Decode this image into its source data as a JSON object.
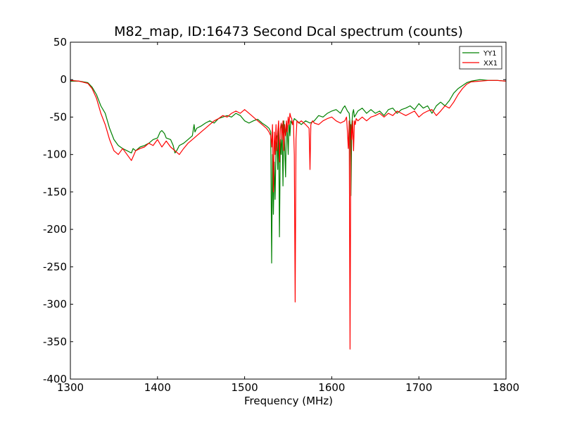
{
  "chart_data": {
    "type": "line",
    "title": "M82_map, ID:16473 Second Dcal spectrum (counts)",
    "xlabel": "Frequency (MHz)",
    "ylabel": "",
    "xlim": [
      1300,
      1800
    ],
    "ylim": [
      -400,
      50
    ],
    "xticks": [
      1300,
      1400,
      1500,
      1600,
      1700,
      1800
    ],
    "yticks": [
      50,
      0,
      -50,
      -100,
      -150,
      -200,
      -250,
      -300,
      -350,
      -400
    ],
    "grid": false,
    "legend": "top-right",
    "series": [
      {
        "name": "YY1",
        "color": "#008000",
        "x": [
          1300,
          1310,
          1320,
          1325,
          1330,
          1335,
          1340,
          1345,
          1350,
          1355,
          1360,
          1365,
          1370,
          1372,
          1375,
          1380,
          1385,
          1390,
          1395,
          1400,
          1403,
          1405,
          1408,
          1410,
          1415,
          1418,
          1420,
          1422,
          1425,
          1430,
          1435,
          1440,
          1442,
          1443,
          1445,
          1450,
          1455,
          1460,
          1465,
          1470,
          1475,
          1480,
          1485,
          1490,
          1495,
          1500,
          1505,
          1510,
          1515,
          1520,
          1525,
          1528,
          1530,
          1531,
          1532,
          1533,
          1534,
          1535,
          1536,
          1537,
          1538,
          1539,
          1540,
          1541,
          1542,
          1543,
          1544,
          1545,
          1546,
          1547,
          1548,
          1549,
          1550,
          1551,
          1552,
          1553,
          1555,
          1557,
          1560,
          1565,
          1570,
          1575,
          1580,
          1585,
          1590,
          1595,
          1600,
          1605,
          1610,
          1613,
          1615,
          1618,
          1620,
          1621,
          1622,
          1623,
          1624,
          1625,
          1626,
          1630,
          1635,
          1640,
          1645,
          1650,
          1655,
          1660,
          1665,
          1670,
          1675,
          1680,
          1685,
          1690,
          1695,
          1700,
          1705,
          1710,
          1715,
          1720,
          1725,
          1730,
          1735,
          1740,
          1745,
          1750,
          1755,
          1760,
          1770,
          1780,
          1790,
          1800
        ],
        "y": [
          -2,
          -2,
          -4,
          -10,
          -20,
          -35,
          -45,
          -65,
          -80,
          -88,
          -92,
          -95,
          -98,
          -92,
          -95,
          -90,
          -88,
          -85,
          -80,
          -78,
          -70,
          -68,
          -72,
          -78,
          -80,
          -88,
          -98,
          -95,
          -88,
          -85,
          -80,
          -75,
          -60,
          -70,
          -65,
          -62,
          -58,
          -55,
          -58,
          -52,
          -50,
          -48,
          -50,
          -45,
          -48,
          -55,
          -58,
          -55,
          -53,
          -58,
          -62,
          -65,
          -70,
          -245,
          -100,
          -180,
          -110,
          -160,
          -90,
          -75,
          -120,
          -60,
          -210,
          -80,
          -100,
          -60,
          -142,
          -55,
          -90,
          -130,
          -58,
          -70,
          -100,
          -55,
          -75,
          -55,
          -60,
          -52,
          -55,
          -60,
          -55,
          -58,
          -55,
          -48,
          -50,
          -45,
          -42,
          -40,
          -45,
          -38,
          -35,
          -42,
          -45,
          -60,
          -155,
          -60,
          -45,
          -40,
          -50,
          -42,
          -38,
          -45,
          -40,
          -45,
          -42,
          -48,
          -40,
          -38,
          -45,
          -40,
          -38,
          -35,
          -40,
          -32,
          -38,
          -35,
          -45,
          -35,
          -30,
          -35,
          -28,
          -18,
          -12,
          -8,
          -4,
          -2,
          0,
          -1,
          -1,
          -2
        ],
        "linewidth": 1.2
      },
      {
        "name": "XX1",
        "color": "#ff0000",
        "x": [
          1300,
          1310,
          1320,
          1325,
          1330,
          1335,
          1340,
          1345,
          1350,
          1355,
          1360,
          1365,
          1370,
          1372,
          1375,
          1380,
          1385,
          1390,
          1395,
          1400,
          1405,
          1410,
          1415,
          1420,
          1425,
          1430,
          1435,
          1440,
          1445,
          1450,
          1455,
          1460,
          1465,
          1470,
          1475,
          1480,
          1485,
          1490,
          1495,
          1500,
          1505,
          1510,
          1515,
          1520,
          1525,
          1528,
          1530,
          1531,
          1532,
          1533,
          1534,
          1535,
          1536,
          1537,
          1538,
          1539,
          1540,
          1541,
          1542,
          1543,
          1544,
          1545,
          1546,
          1547,
          1548,
          1549,
          1550,
          1551,
          1552,
          1553,
          1554,
          1555,
          1556,
          1557,
          1558,
          1559,
          1560,
          1562,
          1565,
          1570,
          1574,
          1575,
          1576,
          1578,
          1580,
          1585,
          1590,
          1595,
          1600,
          1605,
          1610,
          1615,
          1617,
          1618,
          1619,
          1620,
          1621,
          1622,
          1623,
          1624,
          1625,
          1626,
          1627,
          1628,
          1630,
          1635,
          1640,
          1645,
          1650,
          1655,
          1660,
          1665,
          1670,
          1675,
          1680,
          1685,
          1690,
          1695,
          1700,
          1705,
          1710,
          1715,
          1720,
          1725,
          1730,
          1735,
          1740,
          1745,
          1750,
          1755,
          1760,
          1770,
          1780,
          1790,
          1800
        ],
        "y": [
          -1,
          -2,
          -5,
          -12,
          -25,
          -45,
          -60,
          -80,
          -95,
          -100,
          -92,
          -100,
          -108,
          -103,
          -95,
          -92,
          -90,
          -85,
          -88,
          -80,
          -90,
          -82,
          -90,
          -95,
          -100,
          -92,
          -85,
          -80,
          -75,
          -70,
          -65,
          -60,
          -55,
          -52,
          -48,
          -50,
          -45,
          -42,
          -45,
          -40,
          -45,
          -50,
          -55,
          -60,
          -65,
          -70,
          -75,
          -90,
          -60,
          -150,
          -70,
          -100,
          -60,
          -95,
          -70,
          -55,
          -110,
          -65,
          -58,
          -80,
          -55,
          -95,
          -60,
          -75,
          -55,
          -70,
          -50,
          -60,
          -45,
          -50,
          -52,
          -60,
          -55,
          -100,
          -297,
          -80,
          -55,
          -58,
          -55,
          -60,
          -65,
          -120,
          -60,
          -55,
          -58,
          -60,
          -55,
          -52,
          -50,
          -55,
          -58,
          -55,
          -50,
          -70,
          -92,
          -55,
          -360,
          -60,
          -80,
          -55,
          -95,
          -55,
          -60,
          -52,
          -55,
          -50,
          -55,
          -50,
          -48,
          -45,
          -50,
          -45,
          -48,
          -42,
          -45,
          -48,
          -45,
          -42,
          -50,
          -45,
          -42,
          -40,
          -48,
          -42,
          -35,
          -38,
          -30,
          -20,
          -12,
          -6,
          -3,
          -2,
          -1,
          -1,
          -2
        ],
        "linewidth": 1.2
      }
    ]
  }
}
